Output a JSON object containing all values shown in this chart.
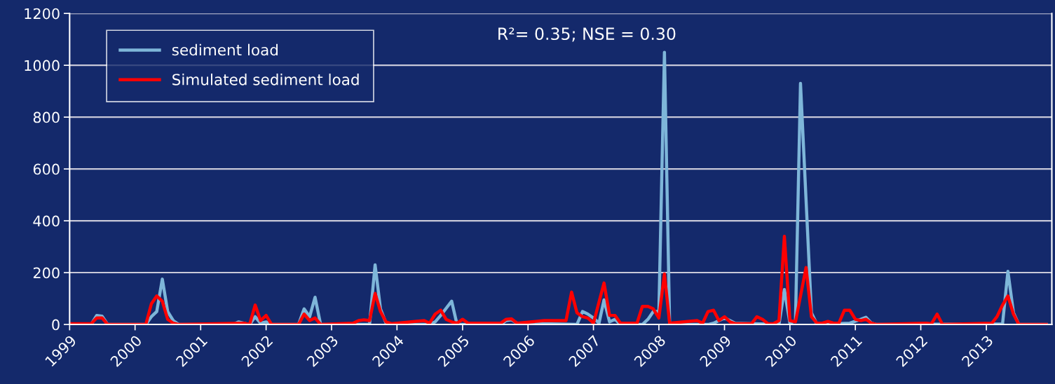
{
  "chart_data": {
    "type": "line",
    "annotations": [
      "R²= 0.35; NSE = 0.30"
    ],
    "xlim": [
      "1999-01",
      "2014-01"
    ],
    "xticks": [
      "1999",
      "2000",
      "2001",
      "2002",
      "2003",
      "2004",
      "2005",
      "2006",
      "2007",
      "2008",
      "2009",
      "2010",
      "2011",
      "2012",
      "2013"
    ],
    "ylim": [
      0,
      1200
    ],
    "yticks": [
      0,
      200,
      400,
      600,
      800,
      1000,
      1200
    ],
    "grid": "y",
    "legend": "top left",
    "marker": "none",
    "line_style": "solid",
    "series": [
      {
        "name": "sediment load",
        "color": "#7eb6d9",
        "x": [
          "1999-01",
          "1999-05",
          "1999-06",
          "1999-07",
          "1999-08",
          "2000-03",
          "2000-04",
          "2000-05",
          "2000-06",
          "2000-07",
          "2000-08",
          "2000-09",
          "2001-07",
          "2001-08",
          "2001-10",
          "2001-11",
          "2001-12",
          "2002-01",
          "2002-02",
          "2002-07",
          "2002-08",
          "2002-09",
          "2002-10",
          "2002-11",
          "2003-08",
          "2003-09",
          "2003-10",
          "2003-11",
          "2003-12",
          "2004-07",
          "2004-08",
          "2004-09",
          "2004-11",
          "2004-12",
          "2005-08",
          "2005-09",
          "2005-10",
          "2005-11",
          "2006-10",
          "2006-11",
          "2006-12",
          "2007-01",
          "2007-02",
          "2007-03",
          "2007-04",
          "2007-05",
          "2007-06",
          "2007-10",
          "2007-11",
          "2007-12",
          "2008-01",
          "2008-02",
          "2008-03",
          "2008-10",
          "2008-11",
          "2009-01",
          "2009-02",
          "2009-03",
          "2009-11",
          "2009-12",
          "2010-01",
          "2010-02",
          "2010-03",
          "2010-05",
          "2010-06",
          "2010-12",
          "2011-02",
          "2011-03",
          "2011-04",
          "2011-05",
          "2013-04",
          "2013-05",
          "2013-06",
          "2013-07",
          "2013-12"
        ],
        "values": [
          0,
          0,
          35,
          32,
          0,
          0,
          30,
          50,
          175,
          50,
          15,
          0,
          0,
          10,
          0,
          30,
          5,
          10,
          0,
          0,
          60,
          30,
          105,
          0,
          0,
          230,
          60,
          5,
          0,
          0,
          10,
          35,
          90,
          0,
          0,
          15,
          18,
          5,
          0,
          50,
          40,
          25,
          5,
          95,
          10,
          20,
          0,
          0,
          20,
          50,
          50,
          1050,
          0,
          0,
          5,
          25,
          15,
          5,
          0,
          135,
          5,
          15,
          930,
          45,
          0,
          5,
          20,
          28,
          5,
          0,
          2,
          205,
          45,
          0,
          0
        ]
      },
      {
        "name": "Simulated sediment load",
        "color": "#ff0000",
        "x": [
          "1999-01",
          "1999-05",
          "1999-06",
          "1999-07",
          "1999-08",
          "2000-03",
          "2000-04",
          "2000-05",
          "2000-06",
          "2000-07",
          "2000-08",
          "2000-09",
          "2001-09",
          "2001-10",
          "2001-11",
          "2001-12",
          "2002-01",
          "2002-02",
          "2002-07",
          "2002-08",
          "2002-09",
          "2002-10",
          "2002-11",
          "2003-05",
          "2003-06",
          "2003-07",
          "2003-08",
          "2003-09",
          "2003-10",
          "2003-11",
          "2003-12",
          "2004-06",
          "2004-07",
          "2004-08",
          "2004-09",
          "2004-10",
          "2004-11",
          "2004-12",
          "2005-01",
          "2005-02",
          "2005-08",
          "2005-09",
          "2005-10",
          "2005-11",
          "2006-04",
          "2006-05",
          "2006-08",
          "2006-09",
          "2006-10",
          "2006-11",
          "2006-12",
          "2007-01",
          "2007-03",
          "2007-04",
          "2007-05",
          "2007-06",
          "2007-09",
          "2007-10",
          "2007-11",
          "2007-12",
          "2008-01",
          "2008-02",
          "2008-03",
          "2008-08",
          "2008-09",
          "2008-10",
          "2008-11",
          "2008-12",
          "2009-01",
          "2009-02",
          "2009-03",
          "2009-06",
          "2009-07",
          "2009-08",
          "2009-09",
          "2009-10",
          "2009-11",
          "2009-12",
          "2010-01",
          "2010-02",
          "2010-04",
          "2010-05",
          "2010-06",
          "2010-07",
          "2010-08",
          "2010-09",
          "2010-10",
          "2010-11",
          "2010-12",
          "2011-01",
          "2011-02",
          "2011-03",
          "2011-04",
          "2011-05",
          "2012-02",
          "2012-03",
          "2012-04",
          "2012-05",
          "2013-02",
          "2013-03",
          "2013-04",
          "2013-05",
          "2013-06",
          "2013-07",
          "2013-12"
        ],
        "values": [
          3,
          3,
          25,
          25,
          0,
          0,
          80,
          110,
          90,
          20,
          5,
          0,
          5,
          0,
          75,
          15,
          35,
          0,
          0,
          40,
          15,
          25,
          0,
          5,
          15,
          18,
          15,
          120,
          50,
          10,
          3,
          15,
          5,
          40,
          55,
          20,
          10,
          5,
          20,
          5,
          5,
          20,
          22,
          5,
          15,
          15,
          15,
          125,
          45,
          30,
          25,
          5,
          160,
          35,
          35,
          5,
          5,
          70,
          70,
          60,
          25,
          195,
          5,
          15,
          5,
          50,
          55,
          15,
          30,
          10,
          3,
          3,
          30,
          20,
          3,
          3,
          15,
          340,
          15,
          10,
          220,
          30,
          5,
          5,
          12,
          5,
          5,
          55,
          55,
          20,
          15,
          20,
          5,
          0,
          5,
          3,
          40,
          0,
          5,
          30,
          75,
          110,
          40,
          0,
          0
        ]
      }
    ]
  }
}
